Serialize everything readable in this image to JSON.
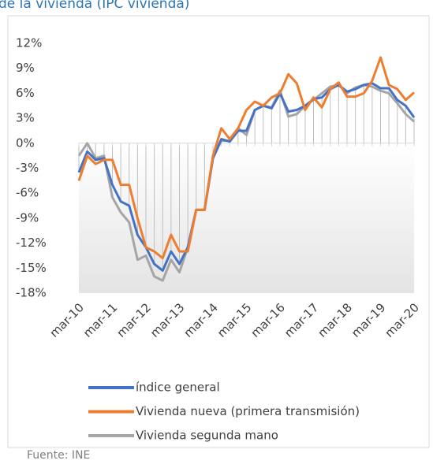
{
  "chart_data": {
    "type": "line",
    "title": "de la vivienda (IPC vivienda)",
    "source": "Fuente: INE",
    "categories": [
      "mar-10",
      null,
      null,
      null,
      "mar-11",
      null,
      null,
      null,
      "mar-12",
      null,
      null,
      null,
      "mar-13",
      null,
      null,
      null,
      "mar-14",
      null,
      null,
      null,
      "mar-15",
      null,
      null,
      null,
      "mar-16",
      null,
      null,
      null,
      "mar-17",
      null,
      null,
      null,
      "mar-18",
      null,
      null,
      null,
      "mar-19",
      null,
      null,
      null,
      "mar-20"
    ],
    "series": [
      {
        "name": "índice general",
        "color": "#4472c4",
        "values": [
          -3.5,
          -1,
          -2,
          -1.8,
          -5,
          -7,
          -7.5,
          -11,
          -12.5,
          -14.5,
          -15.3,
          -13,
          -14.5,
          -12.5,
          -8,
          -8,
          -1.8,
          0.5,
          0.2,
          1.5,
          1.5,
          4,
          4.5,
          4.2,
          6,
          3.8,
          4,
          4.5,
          5.3,
          5.5,
          6.5,
          7,
          6.2,
          6.5,
          7,
          7.2,
          6.6,
          6.6,
          5.2,
          4.5,
          3.1
        ]
      },
      {
        "name": "Vivienda nueva (primera transmisión)",
        "color": "#ed7d31",
        "values": [
          -4.5,
          -1.5,
          -2.5,
          -2,
          -2,
          -5,
          -5,
          -9,
          -12.5,
          -13,
          -13.8,
          -11,
          -13,
          -13,
          -8,
          -8,
          -1.5,
          1.8,
          0.5,
          1.8,
          4,
          5,
          4.5,
          5.5,
          6,
          8.3,
          7.2,
          4,
          5.5,
          4.3,
          6.5,
          7.3,
          5.6,
          5.6,
          6,
          7.5,
          10.3,
          7,
          6.5,
          5.2,
          6.1
        ]
      },
      {
        "name": "Vivienda segunda mano",
        "color": "#a5a5a5",
        "values": [
          -1.5,
          0,
          -1.8,
          -1.5,
          -6.5,
          -8.3,
          -9.5,
          -14,
          -13.5,
          -16,
          -16.5,
          -14,
          -15.5,
          -12.5,
          -8,
          -8,
          -1.8,
          0.3,
          0.3,
          1.8,
          1,
          4,
          4.5,
          4.3,
          6.3,
          3.2,
          3.5,
          4.5,
          5.2,
          6,
          6.8,
          7,
          6,
          6.7,
          7,
          6.8,
          6.3,
          6,
          4.8,
          3.5,
          2.6
        ]
      }
    ],
    "ylim": [
      -18,
      12
    ],
    "yticks": [
      {
        "value": 12,
        "label": "12%"
      },
      {
        "value": 9,
        "label": "9%"
      },
      {
        "value": 6,
        "label": "6%"
      },
      {
        "value": 3,
        "label": "3%"
      },
      {
        "value": 0,
        "label": "0%"
      },
      {
        "value": -3,
        "label": "-3%"
      },
      {
        "value": -6,
        "label": "-6%"
      },
      {
        "value": -9,
        "label": "-9%"
      },
      {
        "value": -12,
        "label": "-12%"
      },
      {
        "value": -15,
        "label": "-15%"
      },
      {
        "value": -18,
        "label": "-18%"
      }
    ],
    "legend": "bottom"
  }
}
